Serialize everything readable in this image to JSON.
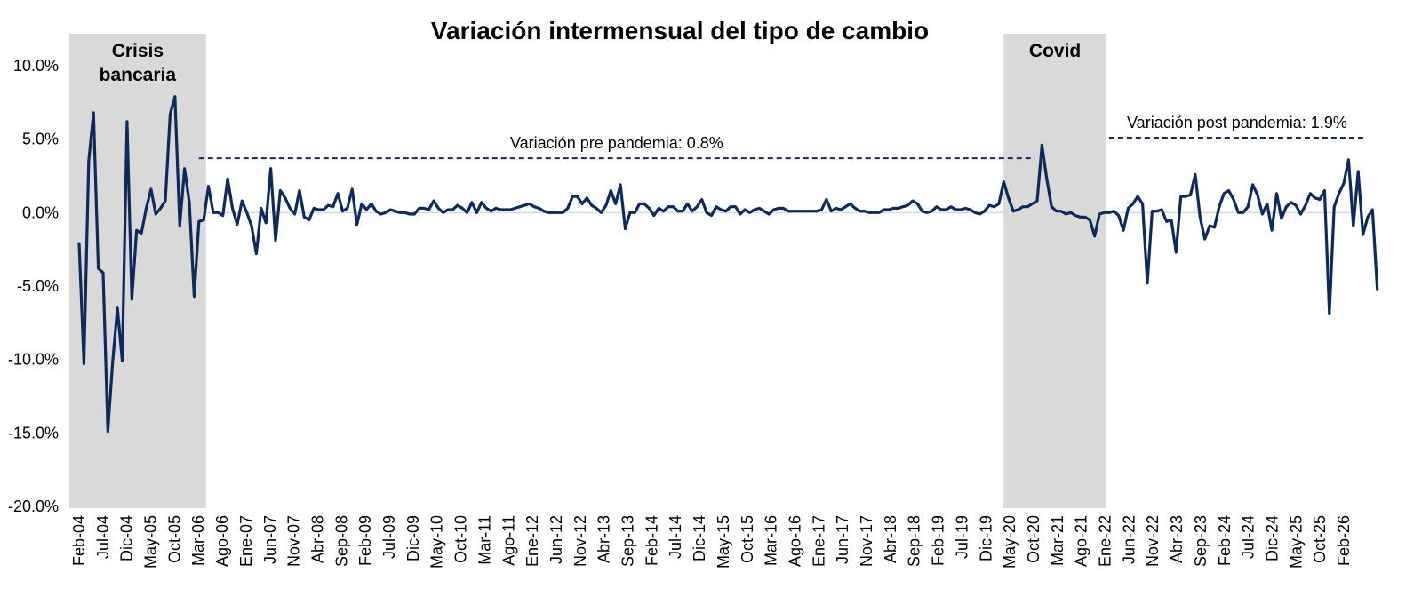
{
  "chart_data": {
    "type": "line",
    "title": "Variación intermensual del tipo de cambio",
    "xlabel": "",
    "ylabel": "",
    "ylim": [
      -20,
      10
    ],
    "y_ticks": [
      10,
      5,
      0,
      -5,
      -10,
      -15,
      -20
    ],
    "y_tick_labels": [
      "10.0%",
      "5.0%",
      "0.0%",
      "-5.0%",
      "-10.0%",
      "-15.0%",
      "-20.0%"
    ],
    "grid": false,
    "legend": "none",
    "x_start": "2004-02",
    "x_end": "2026-02",
    "x_tick_labels": [
      "Feb-04",
      "Jul-04",
      "Dic-04",
      "May-05",
      "Oct-05",
      "Mar-06",
      "Ago-06",
      "Ene-07",
      "Jun-07",
      "Nov-07",
      "Abr-08",
      "Sep-08",
      "Feb-09",
      "Jul-09",
      "Dic-09",
      "May-10",
      "Oct-10",
      "Mar-11",
      "Ago-11",
      "Ene-12",
      "Jun-12",
      "Nov-12",
      "Abr-13",
      "Sep-13",
      "Feb-14",
      "Jul-14",
      "Dic-14",
      "May-15",
      "Oct-15",
      "Mar-16",
      "Ago-16",
      "Ene-17",
      "Jun-17",
      "Nov-17",
      "Abr-18",
      "Sep-18",
      "Feb-19",
      "Jul-19",
      "Dic-19",
      "May-20",
      "Oct-20",
      "Mar-21",
      "Ago-21",
      "Ene-22",
      "Jun-22",
      "Nov-22",
      "Abr-23",
      "Sep-23",
      "Feb-24",
      "Jul-24",
      "Dic-24",
      "May-25",
      "Oct-25",
      "Feb-26"
    ],
    "series": [
      {
        "name": "",
        "color": "#0d2a5e",
        "values": [
          -2.1,
          -10.3,
          3.5,
          6.8,
          -3.8,
          -4.1,
          -14.9,
          -10.2,
          -6.5,
          -10.1,
          6.2,
          -5.9,
          -1.2,
          -1.4,
          0.3,
          1.6,
          -0.1,
          0.3,
          0.8,
          6.7,
          7.9,
          -0.9,
          3.0,
          0.7,
          -5.7,
          -0.6,
          -0.5,
          1.8,
          0.0,
          0.0,
          -0.2,
          2.3,
          0.3,
          -0.8,
          0.8,
          0.0,
          -0.9,
          -2.8,
          0.3,
          -0.7,
          3.0,
          -1.9,
          1.5,
          1.0,
          0.3,
          -0.1,
          1.5,
          -0.3,
          -0.5,
          0.3,
          0.2,
          0.2,
          0.5,
          0.4,
          1.3,
          0.1,
          0.3,
          1.6,
          -0.8,
          0.6,
          0.2,
          0.6,
          0.1,
          -0.1,
          0.0,
          0.2,
          0.1,
          0.0,
          0.0,
          -0.1,
          -0.1,
          0.3,
          0.3,
          0.2,
          0.8,
          0.3,
          0.0,
          0.2,
          0.2,
          0.5,
          0.3,
          0.0,
          0.7,
          0.0,
          0.7,
          0.3,
          0.1,
          0.3,
          0.2,
          0.2,
          0.2,
          0.3,
          0.4,
          0.5,
          0.6,
          0.4,
          0.3,
          0.1,
          0.0,
          0.0,
          0.0,
          0.0,
          0.3,
          1.1,
          1.1,
          0.6,
          1.0,
          0.5,
          0.3,
          0.0,
          0.5,
          1.5,
          0.6,
          1.9,
          -1.1,
          0.0,
          0.0,
          0.6,
          0.6,
          0.3,
          -0.2,
          0.3,
          0.1,
          0.4,
          0.4,
          0.1,
          0.1,
          0.6,
          0.1,
          0.4,
          0.9,
          0.0,
          -0.2,
          0.4,
          0.2,
          0.1,
          0.4,
          0.4,
          -0.1,
          0.2,
          0.0,
          0.2,
          0.3,
          0.1,
          -0.1,
          0.2,
          0.3,
          0.3,
          0.1,
          0.1,
          0.1,
          0.1,
          0.1,
          0.1,
          0.1,
          0.2,
          0.9,
          0.1,
          0.3,
          0.2,
          0.4,
          0.6,
          0.3,
          0.1,
          0.1,
          0.0,
          0.0,
          0.0,
          0.2,
          0.2,
          0.3,
          0.3,
          0.4,
          0.5,
          0.8,
          0.6,
          0.1,
          0.0,
          0.1,
          0.4,
          0.2,
          0.2,
          0.4,
          0.2,
          0.2,
          0.3,
          0.2,
          0.0,
          -0.1,
          0.1,
          0.5,
          0.4,
          0.6,
          2.1,
          1.0,
          0.1,
          0.2,
          0.4,
          0.4,
          0.6,
          0.8,
          4.6,
          2.3,
          0.4,
          0.1,
          0.1,
          -0.1,
          0.0,
          -0.2,
          -0.3,
          -0.3,
          -0.5,
          -1.6,
          -0.1,
          0.0,
          0.0,
          0.1,
          -0.2,
          -1.2,
          0.3,
          0.6,
          1.1,
          0.6,
          -4.8,
          0.1,
          0.1,
          0.2,
          -0.6,
          -0.5,
          -2.7,
          1.1,
          1.1,
          1.2,
          2.6,
          -0.3,
          -1.8,
          -0.9,
          -1.0,
          0.4,
          1.3,
          1.5,
          0.9,
          0.0,
          0.0,
          0.4,
          1.9,
          1.2,
          -0.1,
          0.6,
          -1.2,
          1.3,
          -0.4,
          0.4,
          0.7,
          0.5,
          -0.1,
          0.5,
          1.3,
          1.0,
          0.9,
          1.5,
          -6.9,
          0.4,
          1.3,
          2.0,
          3.6,
          -0.9,
          2.8,
          -1.5,
          -0.3,
          0.2,
          -5.2
        ]
      }
    ],
    "shaded_periods": [
      {
        "label": "Crisis bancaria",
        "label_lines": [
          "Crisis",
          "bancaria"
        ],
        "start": "2004-02",
        "end": "2006-03",
        "color": "#d9d9d9"
      },
      {
        "label": "Covid",
        "label_lines": [
          "Covid"
        ],
        "start": "2020-05",
        "end": "2021-11",
        "color": "#d9d9d9"
      }
    ],
    "reference_lines": [
      {
        "label": "Variación pre pandemia: 0.8%",
        "start": "2006-03",
        "end": "2020-05",
        "y_value": 3.7,
        "style": "dashed",
        "color": "#0d2a5e"
      },
      {
        "label": "Variación post pandemia: 1.9%",
        "start": "2022-01",
        "end": "2026-02",
        "y_value": 5.1,
        "style": "dashed",
        "color": "#0d2a5e"
      }
    ]
  }
}
